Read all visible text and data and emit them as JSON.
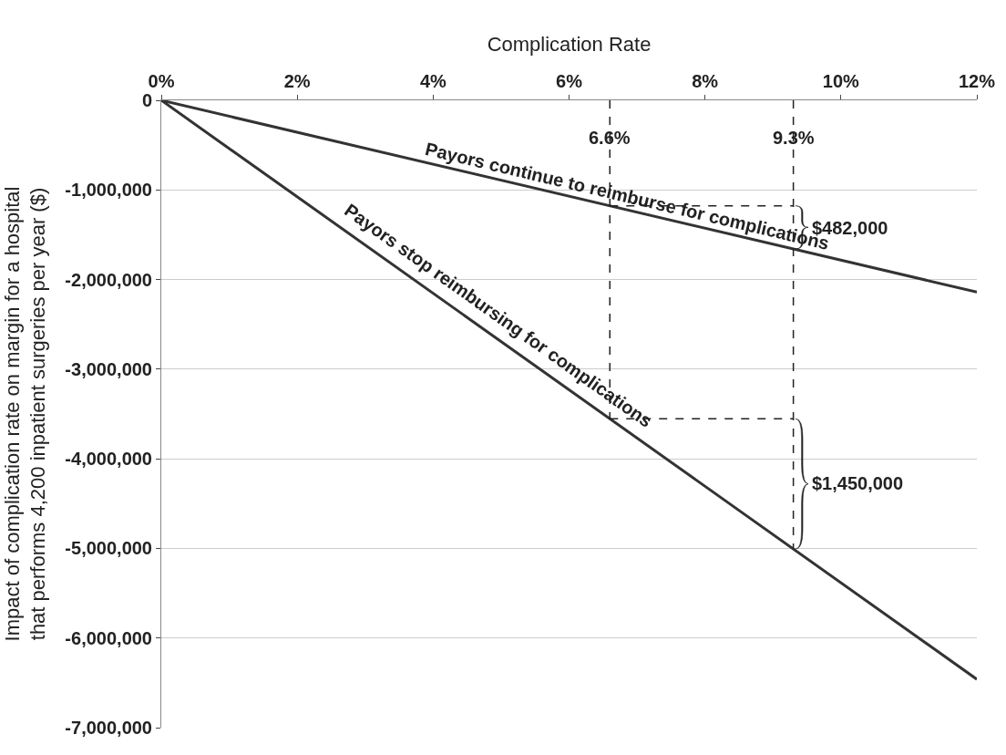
{
  "chart_data": {
    "type": "line",
    "xlabel": "Complication Rate",
    "ylabel": "Impact of complication rate on margin for a hospital\nthat performs 4,200 inpatient surgeries per year ($)",
    "series": [
      {
        "color": "#333333",
        "values": [
          0,
          -2140000
        ]
      },
      {
        "color": "#333333",
        "values": [
          0,
          -6460000
        ]
      }
    ],
    "x": [
      0,
      12
    ],
    "xlim": [
      0,
      12
    ],
    "xticks": [
      {
        "value": 0,
        "label": "0%"
      },
      {
        "value": 2,
        "label": "2%"
      },
      {
        "value": 4,
        "label": "4%"
      },
      {
        "value": 6,
        "label": "6%"
      },
      {
        "value": 8,
        "label": "8%"
      },
      {
        "value": 10,
        "label": "10%"
      },
      {
        "value": 12,
        "label": "12%"
      }
    ],
    "ylim": [
      -7000000,
      0
    ],
    "yticks": [
      0,
      {
        "value": -1000000,
        "label": "-1,000,000"
      },
      {
        "value": -2000000,
        "label": "-2,000,000"
      },
      {
        "value": -3000000,
        "label": "-3,000,000"
      },
      {
        "value": -4000000,
        "label": "-4,000,000"
      },
      {
        "value": -5000000,
        "label": "-5,000,000"
      },
      {
        "value": -6000000,
        "label": "-6,000,000"
      },
      {
        "value": -7000000,
        "label": "-7,000,000"
      }
    ],
    "ref_lines": [
      {
        "axis": "x",
        "value": 6.6,
        "label": "6.6%",
        "line_style": "dashed"
      },
      {
        "axis": "x",
        "value": 9.3,
        "label": "9.3%",
        "line_style": "dashed"
      }
    ],
    "annotations": [
      {
        "text": "Payors continue to reimburse for complications",
        "x": 6.8,
        "y": -1212000
      },
      {
        "text": "Payors stop reimbursing for complications",
        "x": 4.8,
        "y": -2584000
      },
      {
        "text": "$482,000",
        "x": 9.3,
        "y": -1420000
      },
      {
        "text": "$1,450,000",
        "x": 9.3,
        "y": -4270000
      }
    ],
    "grid": "y",
    "marker": "none",
    "line_style": "solid"
  }
}
